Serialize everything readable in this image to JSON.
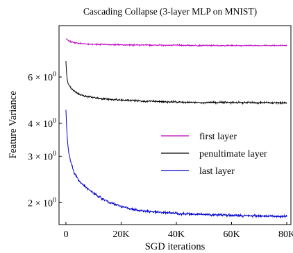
{
  "chart_data": {
    "type": "line",
    "title": "Cascading Collapse (3-layer MLP on MNIST)",
    "xlabel": "SGD iterations",
    "ylabel": "Feature Variance",
    "xscale": "linear",
    "yscale": "log",
    "xlim": [
      -2500,
      81500
    ],
    "ylim": [
      1.65,
      9.4
    ],
    "x_ticks": [
      {
        "value": 0,
        "label": "0"
      },
      {
        "value": 20000,
        "label": "20K"
      },
      {
        "value": 40000,
        "label": "40K"
      },
      {
        "value": 60000,
        "label": "60K"
      },
      {
        "value": 80000,
        "label": "80K"
      }
    ],
    "y_ticks": [
      {
        "value": 2,
        "base": "2 × 10",
        "exp": "0"
      },
      {
        "value": 3,
        "base": "3 × 10",
        "exp": "0"
      },
      {
        "value": 4,
        "base": "4 × 10",
        "exp": "0"
      },
      {
        "value": 6,
        "base": "6 × 10",
        "exp": "0"
      }
    ],
    "grid": false,
    "legend": {
      "position": "center-right"
    },
    "series": [
      {
        "name": "first layer",
        "color": "#bf00bf",
        "x": [
          0,
          500,
          1000,
          2000,
          3000,
          5000,
          8000,
          12000,
          16000,
          20000,
          30000,
          40000,
          50000,
          60000,
          70000,
          80000
        ],
        "y": [
          8.4,
          8.3,
          8.22,
          8.15,
          8.1,
          8.05,
          8.0,
          7.98,
          7.96,
          7.95,
          7.93,
          7.92,
          7.9,
          7.9,
          7.9,
          7.9
        ]
      },
      {
        "name": "penultimate layer",
        "color": "#000000",
        "x": [
          0,
          250,
          500,
          1000,
          2000,
          3000,
          5000,
          8000,
          12000,
          16000,
          20000,
          30000,
          40000,
          50000,
          60000,
          70000,
          80000
        ],
        "y": [
          6.9,
          6.15,
          5.85,
          5.6,
          5.4,
          5.3,
          5.15,
          5.05,
          4.98,
          4.93,
          4.9,
          4.85,
          4.82,
          4.8,
          4.8,
          4.79,
          4.78
        ]
      },
      {
        "name": "last layer",
        "color": "#0000cc",
        "x": [
          0,
          250,
          500,
          1000,
          2000,
          3000,
          5000,
          8000,
          12000,
          16000,
          20000,
          25000,
          30000,
          40000,
          50000,
          60000,
          70000,
          80000
        ],
        "y": [
          4.5,
          3.9,
          3.5,
          3.1,
          2.8,
          2.6,
          2.4,
          2.25,
          2.1,
          2.0,
          1.93,
          1.88,
          1.85,
          1.82,
          1.8,
          1.79,
          1.78,
          1.77
        ]
      }
    ]
  }
}
